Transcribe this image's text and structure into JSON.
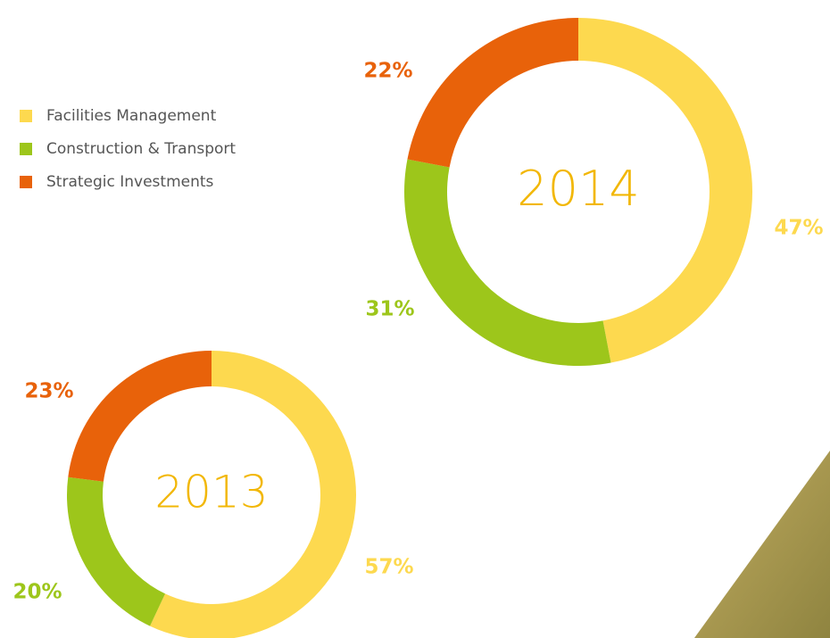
{
  "chart_data": [
    {
      "type": "donut",
      "title": "2014",
      "categories": [
        "Facilities Management",
        "Construction & Transport",
        "Strategic Investments"
      ],
      "values": [
        47,
        31,
        22
      ],
      "value_labels": [
        "47%",
        "31%",
        "22%"
      ],
      "colors": [
        "#fdd94f",
        "#9dc61b",
        "#e8620a"
      ]
    },
    {
      "type": "donut",
      "title": "2013",
      "values": [
        57,
        20,
        23
      ],
      "value_labels": [
        "57%",
        "20%",
        "23%"
      ],
      "colors": [
        "#fdd94f",
        "#9dc61b",
        "#e8620a"
      ]
    }
  ]
}
